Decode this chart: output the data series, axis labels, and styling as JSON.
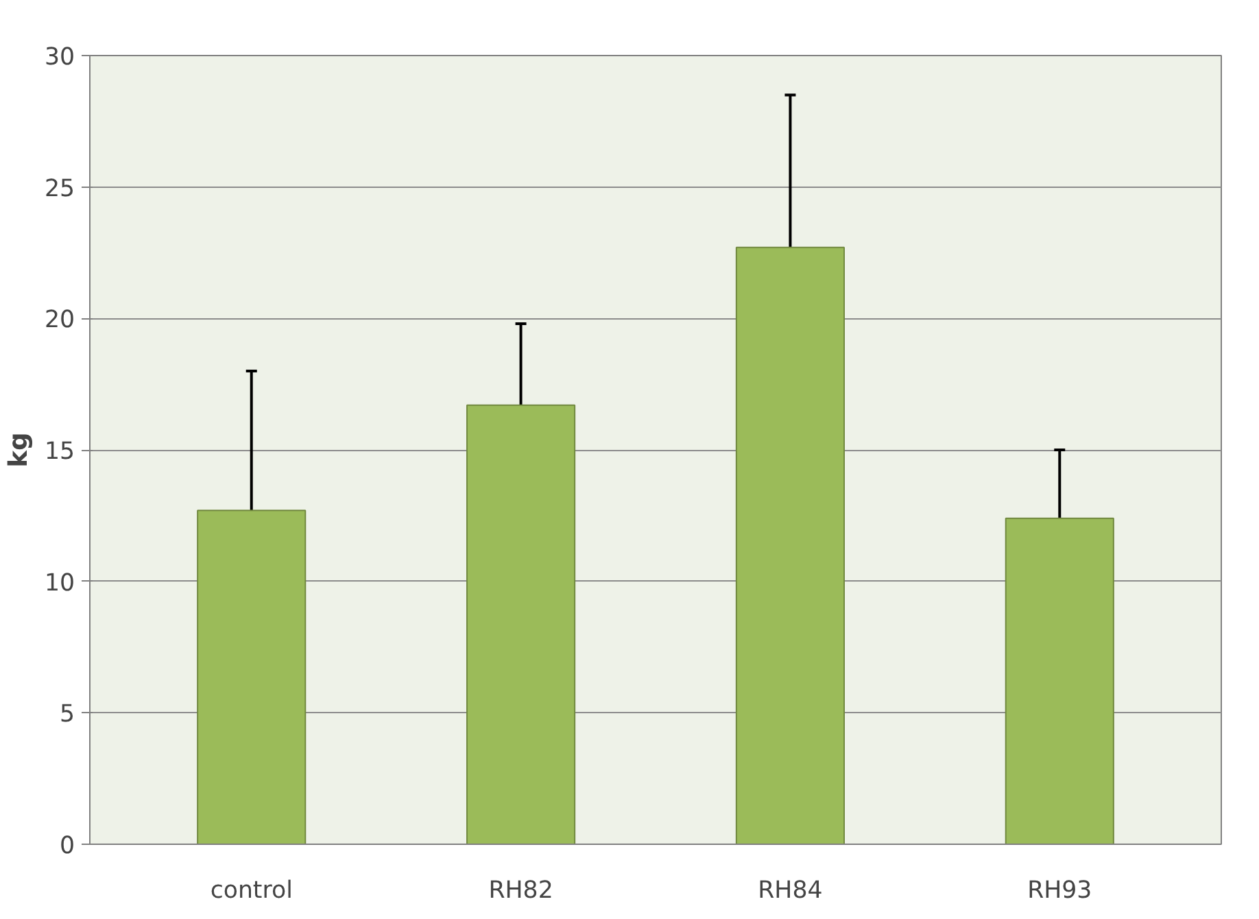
{
  "chart_data": {
    "type": "bar",
    "ylabel": "kg",
    "categories": [
      "control",
      "RH82",
      "RH84",
      "RH93"
    ],
    "values": [
      12.7,
      16.7,
      22.7,
      12.4
    ],
    "errors": [
      [
        12.7,
        18.0
      ],
      [
        16.7,
        19.8
      ],
      [
        22.7,
        28.5
      ],
      [
        12.4,
        15.0
      ]
    ],
    "color": "#9bbb59",
    "ylim": [
      0,
      30
    ],
    "yticks": [
      0,
      5,
      10,
      15,
      20,
      25,
      30
    ],
    "grid": "y"
  }
}
